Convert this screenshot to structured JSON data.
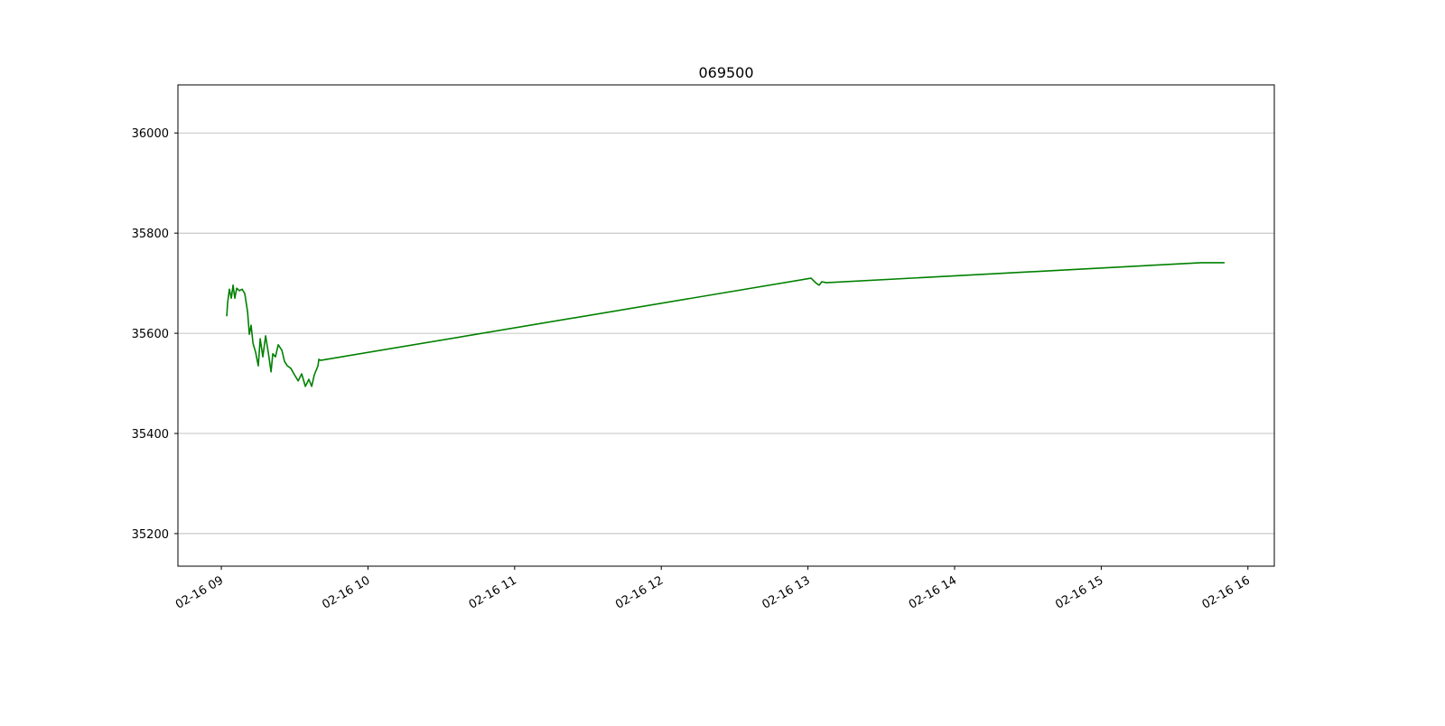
{
  "chart_data": {
    "type": "line",
    "title": "069500",
    "x": [
      9.037,
      9.043,
      9.055,
      9.068,
      9.08,
      9.092,
      9.105,
      9.123,
      9.142,
      9.16,
      9.179,
      9.191,
      9.203,
      9.216,
      9.234,
      9.252,
      9.265,
      9.283,
      9.302,
      9.32,
      9.339,
      9.351,
      9.369,
      9.388,
      9.413,
      9.431,
      9.45,
      9.474,
      9.499,
      9.524,
      9.548,
      9.573,
      9.597,
      9.616,
      9.634,
      9.659,
      9.665,
      9.677,
      13.021,
      13.052,
      13.076,
      13.095,
      13.126,
      15.681,
      15.841
    ],
    "values": [
      35634,
      35661,
      35688,
      35670,
      35696,
      35670,
      35690,
      35685,
      35688,
      35679,
      35643,
      35598,
      35616,
      35580,
      35562,
      35535,
      35589,
      35553,
      35595,
      35562,
      35523,
      35559,
      35553,
      35577,
      35566,
      35544,
      35535,
      35530,
      35517,
      35505,
      35519,
      35494,
      35508,
      35494,
      35517,
      35535,
      35548,
      35546,
      35710,
      35701,
      35696,
      35703,
      35701,
      35741,
      35741
    ],
    "color": "#008000",
    "xlim": [
      8.704,
      16.18
    ],
    "xticks": [
      {
        "value": 9,
        "label": "02-16 09"
      },
      {
        "value": 10,
        "label": "02-16 10"
      },
      {
        "value": 11,
        "label": "02-16 11"
      },
      {
        "value": 12,
        "label": "02-16 12"
      },
      {
        "value": 13,
        "label": "02-16 13"
      },
      {
        "value": 14,
        "label": "02-16 14"
      },
      {
        "value": 15,
        "label": "02-16 15"
      },
      {
        "value": 16,
        "label": "02-16 16"
      }
    ],
    "ylim": [
      35135,
      36096
    ],
    "yticks": [
      35200,
      35400,
      35600,
      35800,
      36000
    ],
    "grid": true
  }
}
